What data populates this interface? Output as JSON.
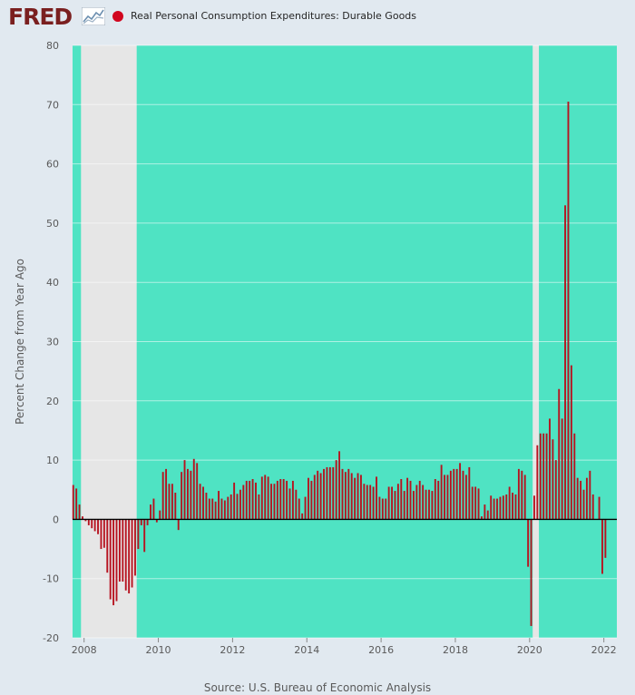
{
  "header": {
    "logo_text": "FRED",
    "legend_label": "Real Personal Consumption Expenditures: Durable Goods"
  },
  "source": "Source: U.S. Bureau of Economic Analysis",
  "colors": {
    "page_background": "#e1e9f0",
    "plot_background": "#4fe3c3",
    "recession_shade": "#e6e6e6",
    "bar": "#b7121f",
    "zero_line": "#000000",
    "legend_marker": "#d1061e",
    "logo": "#7a1f1f"
  },
  "chart_data": {
    "type": "bar",
    "title": "",
    "xlabel": "",
    "ylabel": "Percent Change from Year Ago",
    "ylim": [
      -20,
      80
    ],
    "y_ticks": [
      -20,
      -10,
      0,
      10,
      20,
      30,
      40,
      50,
      60,
      70,
      80
    ],
    "x_ticks": [
      2008,
      2010,
      2012,
      2014,
      2016,
      2018,
      2020,
      2022
    ],
    "x_range": [
      2007.69,
      2022.35
    ],
    "grid": true,
    "legend": "top-left",
    "recessions": [
      [
        2007.917,
        2009.417
      ],
      [
        2020.083,
        2020.25
      ]
    ],
    "series": [
      {
        "name": "Real Personal Consumption Expenditures: Durable Goods",
        "start": "2007-09",
        "frequency": "monthly",
        "values": [
          5.8,
          5.2,
          2.5,
          0.5,
          -0.3,
          -1.0,
          -1.5,
          -2.0,
          -2.5,
          -5.0,
          -4.8,
          -9.0,
          -13.5,
          -14.5,
          -13.8,
          -10.5,
          -10.5,
          -12.0,
          -12.5,
          -11.5,
          -9.5,
          -5.0,
          -1.0,
          -5.5,
          -1.0,
          2.5,
          3.5,
          -0.5,
          1.5,
          8.0,
          8.5,
          6.0,
          6.0,
          4.5,
          -1.8,
          8.0,
          10.0,
          8.5,
          8.2,
          10.2,
          9.5,
          6.0,
          5.5,
          4.5,
          3.5,
          3.5,
          3.0,
          4.8,
          3.5,
          3.2,
          3.8,
          4.2,
          6.2,
          4.3,
          5.0,
          5.8,
          6.5,
          6.5,
          6.8,
          6.2,
          4.2,
          7.2,
          7.5,
          7.2,
          6.0,
          6.0,
          6.5,
          6.8,
          6.8,
          6.5,
          5.2,
          6.5,
          5.0,
          3.5,
          1.0,
          3.8,
          7.0,
          6.5,
          7.5,
          8.2,
          7.8,
          8.5,
          8.8,
          8.8,
          8.8,
          10.0,
          11.5,
          8.5,
          8.0,
          8.5,
          7.8,
          7.0,
          7.8,
          7.5,
          6.0,
          5.8,
          5.8,
          5.5,
          7.2,
          3.8,
          3.5,
          3.5,
          5.5,
          5.5,
          4.8,
          6.0,
          6.8,
          4.8,
          7.0,
          6.5,
          4.8,
          5.8,
          6.5,
          5.8,
          5.0,
          5.0,
          4.8,
          6.8,
          6.5,
          9.2,
          7.5,
          7.5,
          8.2,
          8.5,
          8.5,
          9.5,
          8.2,
          7.5,
          8.8,
          5.5,
          5.5,
          5.2,
          0.5,
          2.5,
          1.5,
          4.0,
          3.5,
          3.5,
          3.8,
          4.0,
          4.2,
          5.5,
          4.5,
          4.2,
          8.5,
          8.2,
          7.5,
          -8.0,
          -18.0,
          4.0,
          12.5,
          14.5,
          14.5,
          14.5,
          17.0,
          13.5,
          10.0,
          22.0,
          17.0,
          53.0,
          70.5,
          26.0,
          14.5,
          7.0,
          6.5,
          5.0,
          7.0,
          8.2,
          4.2,
          0.0,
          3.8,
          -9.2,
          -6.5
        ]
      }
    ]
  }
}
